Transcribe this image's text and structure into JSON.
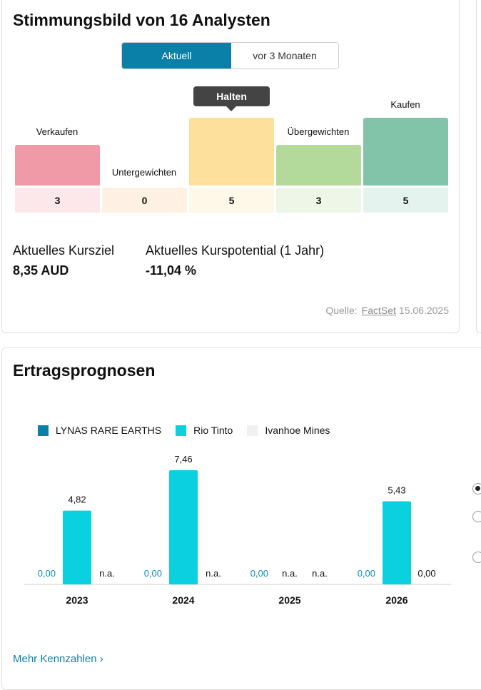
{
  "sentiment": {
    "title": "Stimmungsbild von 16 Analysten",
    "tabs": [
      {
        "label": "Aktuell",
        "active": true
      },
      {
        "label": "vor 3 Monaten",
        "active": false
      }
    ],
    "tooltip": "Halten",
    "categories": [
      {
        "label": "Verkaufen",
        "count": "3",
        "color": "#f19aa7",
        "count_bg": "#fce8eb"
      },
      {
        "label": "Untergewichten",
        "count": "0",
        "color": "#fde7d2",
        "count_bg": "#fef1e4"
      },
      {
        "label": "Halten",
        "count": "5",
        "color": "#fde09b",
        "count_bg": "#fef8e9"
      },
      {
        "label": "Übergewichten",
        "count": "3",
        "color": "#b3da9b",
        "count_bg": "#eef6e8"
      },
      {
        "label": "Kaufen",
        "count": "5",
        "color": "#81c4aa",
        "count_bg": "#e5f3ee"
      }
    ],
    "kursziel_label": "Aktuelles Kursziel",
    "kursziel_value": "8,35 AUD",
    "potential_label": "Aktuelles Kurspotential (1 Jahr)",
    "potential_value": "-11,04 %",
    "source_prefix": "Quelle:",
    "source_link": "FactSet",
    "source_date": "15.06.2025"
  },
  "earnings": {
    "title": "Ertragsprognosen",
    "more_link": "Mehr Kennzahlen",
    "colors": {
      "lynas": "#0a7fa7",
      "rio": "#0bd0df",
      "ivanhoe": "#f0f0f0"
    }
  },
  "chart_data": {
    "type": "bar",
    "title": "Ertragsprognosen",
    "categories": [
      "2023",
      "2024",
      "2025",
      "2026"
    ],
    "series": [
      {
        "name": "LYNAS RARE EARTHS",
        "values": [
          0.0,
          0.0,
          0.0,
          0.0
        ],
        "labels": [
          "0,00",
          "0,00",
          "0,00",
          "0,00"
        ]
      },
      {
        "name": "Rio Tinto",
        "values": [
          4.82,
          7.46,
          null,
          5.43
        ],
        "labels": [
          "4,82",
          "7,46",
          "n.a.",
          "5,43"
        ]
      },
      {
        "name": "Ivanhoe Mines",
        "values": [
          null,
          null,
          null,
          0.0
        ],
        "labels": [
          "n.a.",
          "n.a.",
          "n.a.",
          "0,00"
        ]
      }
    ],
    "ylim": [
      0,
      7.46
    ],
    "grid": false,
    "legend": "top-left"
  }
}
